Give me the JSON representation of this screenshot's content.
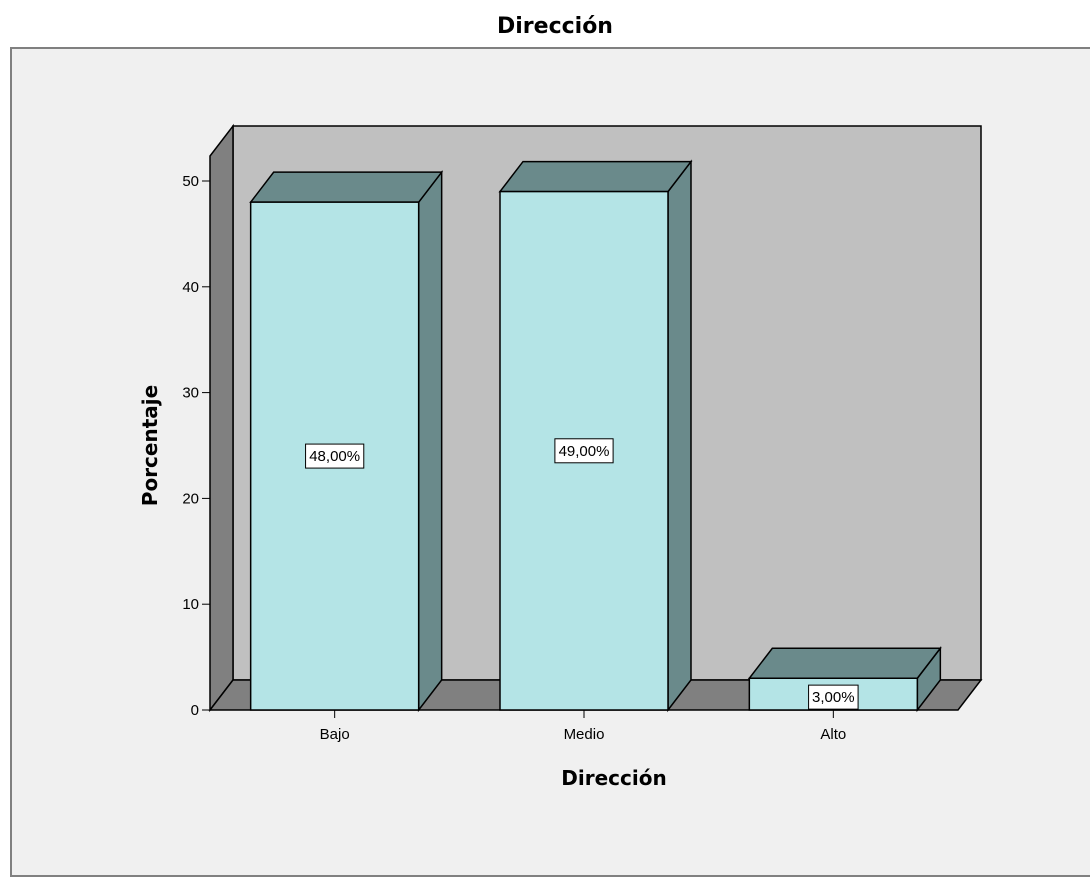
{
  "chart_data": {
    "type": "bar",
    "title": "Dirección",
    "xlabel": "Dirección",
    "ylabel": "Porcentaje",
    "categories": [
      "Bajo",
      "Medio",
      "Alto"
    ],
    "values": [
      48,
      49,
      3
    ],
    "data_labels": [
      "48,00%",
      "49,00%",
      "3,00%"
    ],
    "ylim": [
      0,
      50
    ],
    "yticks": [
      "0",
      "10",
      "20",
      "30",
      "40",
      "50"
    ],
    "three_d": true,
    "grid": false,
    "legend": "none",
    "colors": {
      "bar_front": "#b4e4e6",
      "bar_side": "#6a8a8b",
      "bar_top": "#6a8a8b",
      "wall_back": "#c0c0c0",
      "wall_side": "#808080",
      "floor": "#808080",
      "frame_bg": "#f0f0f0",
      "label_bg": "#ffffff"
    }
  }
}
